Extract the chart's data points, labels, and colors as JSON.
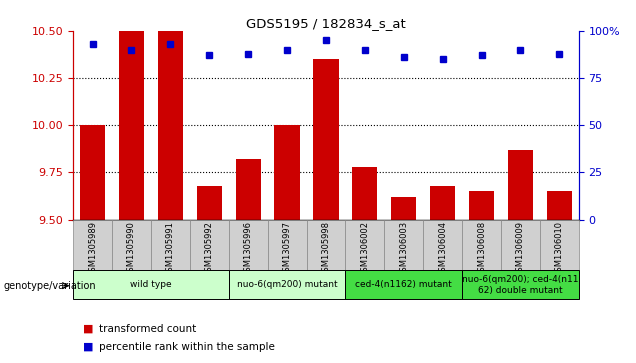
{
  "title": "GDS5195 / 182834_s_at",
  "samples": [
    "GSM1305989",
    "GSM1305990",
    "GSM1305991",
    "GSM1305992",
    "GSM1305996",
    "GSM1305997",
    "GSM1305998",
    "GSM1306002",
    "GSM1306003",
    "GSM1306004",
    "GSM1306008",
    "GSM1306009",
    "GSM1306010"
  ],
  "transformed_counts": [
    10.0,
    10.55,
    10.65,
    9.68,
    9.82,
    10.0,
    10.35,
    9.78,
    9.62,
    9.68,
    9.65,
    9.87,
    9.65
  ],
  "percentile_ranks": [
    93,
    90,
    93,
    87,
    88,
    90,
    95,
    90,
    86,
    85,
    87,
    90,
    88
  ],
  "ylim_left": [
    9.5,
    10.5
  ],
  "ylim_right": [
    0,
    100
  ],
  "yticks_left": [
    9.5,
    9.75,
    10.0,
    10.25,
    10.5
  ],
  "yticks_right": [
    0,
    25,
    50,
    75,
    100
  ],
  "grid_lines": [
    9.75,
    10.0,
    10.25
  ],
  "bar_color": "#cc0000",
  "dot_color": "#0000cc",
  "bar_width": 0.65,
  "groups": [
    {
      "label": "wild type",
      "indices": [
        0,
        1,
        2,
        3
      ],
      "color": "#ccffcc"
    },
    {
      "label": "nuo-6(qm200) mutant",
      "indices": [
        4,
        5,
        6
      ],
      "color": "#ccffcc"
    },
    {
      "label": "ced-4(n1162) mutant",
      "indices": [
        7,
        8,
        9
      ],
      "color": "#44dd44"
    },
    {
      "label": "nuo-6(qm200); ced-4(n11\n62) double mutant",
      "indices": [
        10,
        11,
        12
      ],
      "color": "#44dd44"
    }
  ],
  "genotype_label": "genotype/variation",
  "legend_items": [
    {
      "label": "transformed count",
      "color": "#cc0000"
    },
    {
      "label": "percentile rank within the sample",
      "color": "#0000cc"
    }
  ],
  "tick_color_left": "#cc0000",
  "tick_color_right": "#0000cc",
  "sample_bg_color": "#d0d0d0",
  "sample_border_color": "#888888"
}
